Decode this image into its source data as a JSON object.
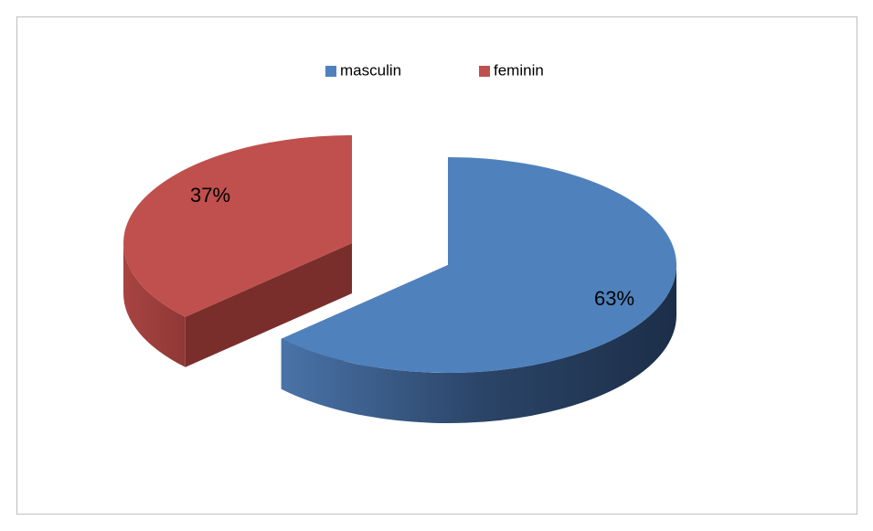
{
  "chart_data": {
    "type": "pie",
    "categories": [
      "masculin",
      "feminin"
    ],
    "values": [
      63,
      37
    ],
    "value_labels": [
      "63%",
      "37%"
    ],
    "colors": [
      "#4f81bd",
      "#c0504d"
    ],
    "legend": "top"
  }
}
